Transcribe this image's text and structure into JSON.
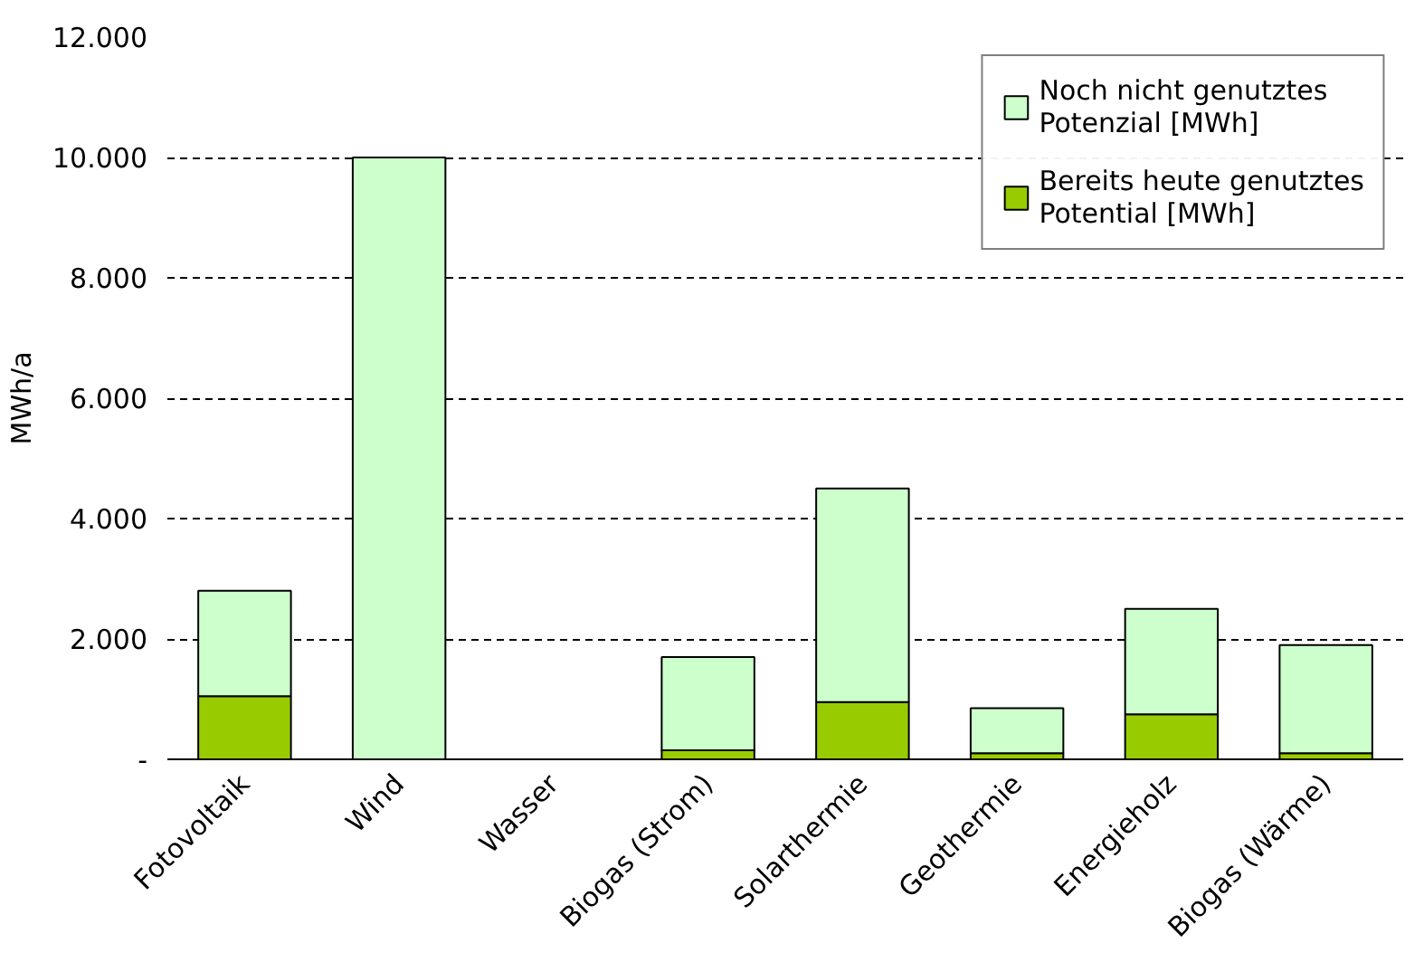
{
  "chart_data": {
    "type": "bar",
    "stacked": true,
    "ylabel": "MWh/a",
    "categories": [
      "Fotovoltaik",
      "Wind",
      "Wasser",
      "Biogas (Strom)",
      "Solarthermie",
      "Geothermie",
      "Energieholz",
      "Biogas (Wärme)"
    ],
    "series": [
      {
        "name": "Bereits heute genutztes Potential [MWh]",
        "color": "#99cc00",
        "values": [
          1050,
          0,
          0,
          150,
          950,
          100,
          750,
          100
        ]
      },
      {
        "name": "Noch nicht genutztes Potenzial [MWh]",
        "color": "#ccffcc",
        "values": [
          1750,
          10000,
          0,
          1550,
          3550,
          750,
          1750,
          1800
        ]
      }
    ],
    "ylim": [
      0,
      12000
    ],
    "yticks": [
      {
        "value": 0,
        "label": "-"
      },
      {
        "value": 2000,
        "label": "2.000"
      },
      {
        "value": 4000,
        "label": "4.000"
      },
      {
        "value": 6000,
        "label": "6.000"
      },
      {
        "value": 8000,
        "label": "8.000"
      },
      {
        "value": 10000,
        "label": "10.000"
      },
      {
        "value": 12000,
        "label": "12.000"
      }
    ],
    "grid": "y",
    "legend": "top right"
  }
}
